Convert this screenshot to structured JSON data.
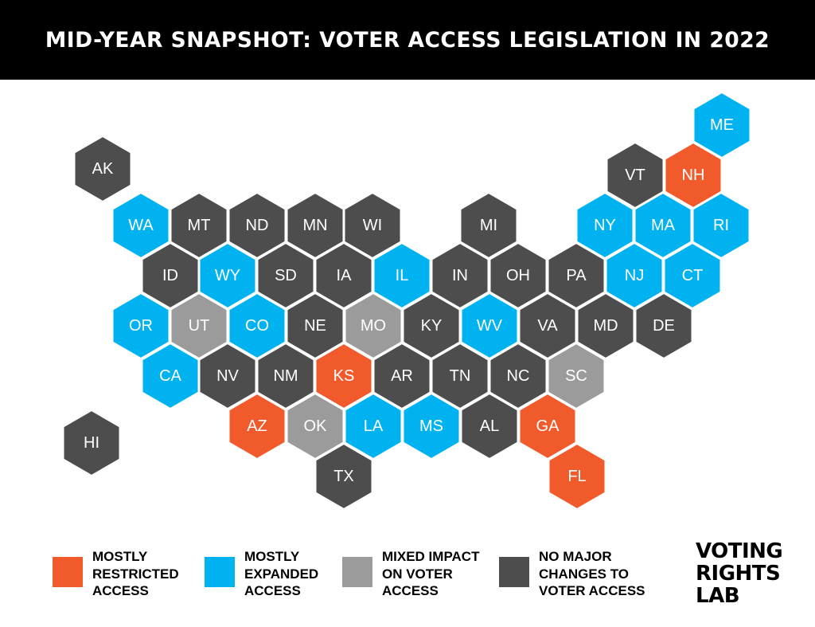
{
  "header": {
    "title": "MID-YEAR SNAPSHOT: VOTER ACCESS LEGISLATION IN 2022"
  },
  "colors": {
    "restricted": "#f15a2b",
    "expanded": "#00b3f0",
    "mixed": "#9b9b9b",
    "none": "#4d4d4d"
  },
  "legend": [
    {
      "key": "restricted",
      "label_lines": [
        "MOSTLY",
        "RESTRICTED",
        "ACCESS"
      ]
    },
    {
      "key": "expanded",
      "label_lines": [
        "MOSTLY",
        "EXPANDED",
        "ACCESS"
      ]
    },
    {
      "key": "mixed",
      "label_lines": [
        "MIXED IMPACT",
        "ON VOTER",
        "ACCESS"
      ]
    },
    {
      "key": "none",
      "label_lines": [
        "NO MAJOR",
        "CHANGES TO",
        "VOTER ACCESS"
      ]
    }
  ],
  "brand": {
    "lines": [
      "VOTING",
      "RIGHTS",
      "LAB"
    ]
  },
  "states": [
    {
      "abbr": "AK",
      "status": "none"
    },
    {
      "abbr": "ME",
      "status": "expanded"
    },
    {
      "abbr": "VT",
      "status": "none"
    },
    {
      "abbr": "NH",
      "status": "restricted"
    },
    {
      "abbr": "WA",
      "status": "expanded"
    },
    {
      "abbr": "MT",
      "status": "none"
    },
    {
      "abbr": "ND",
      "status": "none"
    },
    {
      "abbr": "MN",
      "status": "none"
    },
    {
      "abbr": "WI",
      "status": "none"
    },
    {
      "abbr": "MI",
      "status": "none"
    },
    {
      "abbr": "NY",
      "status": "expanded"
    },
    {
      "abbr": "MA",
      "status": "expanded"
    },
    {
      "abbr": "RI",
      "status": "expanded"
    },
    {
      "abbr": "ID",
      "status": "none"
    },
    {
      "abbr": "WY",
      "status": "expanded"
    },
    {
      "abbr": "SD",
      "status": "none"
    },
    {
      "abbr": "IA",
      "status": "none"
    },
    {
      "abbr": "IL",
      "status": "expanded"
    },
    {
      "abbr": "IN",
      "status": "none"
    },
    {
      "abbr": "OH",
      "status": "none"
    },
    {
      "abbr": "PA",
      "status": "none"
    },
    {
      "abbr": "NJ",
      "status": "expanded"
    },
    {
      "abbr": "CT",
      "status": "expanded"
    },
    {
      "abbr": "OR",
      "status": "expanded"
    },
    {
      "abbr": "UT",
      "status": "mixed"
    },
    {
      "abbr": "CO",
      "status": "expanded"
    },
    {
      "abbr": "NE",
      "status": "none"
    },
    {
      "abbr": "MO",
      "status": "mixed"
    },
    {
      "abbr": "KY",
      "status": "none"
    },
    {
      "abbr": "WV",
      "status": "expanded"
    },
    {
      "abbr": "VA",
      "status": "none"
    },
    {
      "abbr": "MD",
      "status": "none"
    },
    {
      "abbr": "DE",
      "status": "none"
    },
    {
      "abbr": "CA",
      "status": "expanded"
    },
    {
      "abbr": "NV",
      "status": "none"
    },
    {
      "abbr": "NM",
      "status": "none"
    },
    {
      "abbr": "KS",
      "status": "restricted"
    },
    {
      "abbr": "AR",
      "status": "none"
    },
    {
      "abbr": "TN",
      "status": "none"
    },
    {
      "abbr": "NC",
      "status": "none"
    },
    {
      "abbr": "SC",
      "status": "mixed"
    },
    {
      "abbr": "AZ",
      "status": "restricted"
    },
    {
      "abbr": "OK",
      "status": "mixed"
    },
    {
      "abbr": "LA",
      "status": "expanded"
    },
    {
      "abbr": "MS",
      "status": "expanded"
    },
    {
      "abbr": "AL",
      "status": "none"
    },
    {
      "abbr": "GA",
      "status": "restricted"
    },
    {
      "abbr": "HI",
      "status": "none"
    },
    {
      "abbr": "TX",
      "status": "none"
    },
    {
      "abbr": "FL",
      "status": "restricted"
    }
  ]
}
